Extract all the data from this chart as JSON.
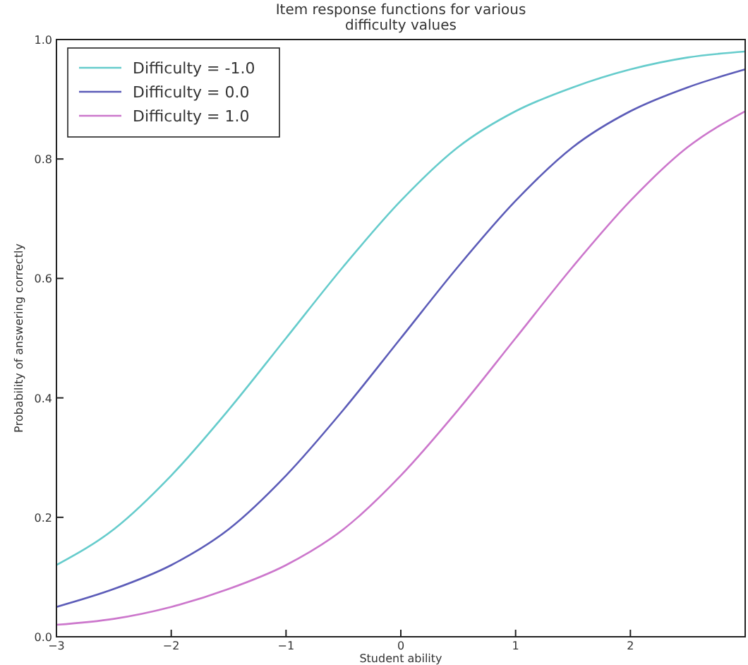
{
  "chart_data": {
    "type": "line",
    "title": "Item response functions for various\ndifficulty values",
    "xlabel": "Student ability",
    "ylabel": "Probability of answering correctly",
    "x": [
      -3,
      -2.5,
      -2,
      -1.5,
      -1,
      -0.5,
      0,
      0.5,
      1,
      1.5,
      2,
      2.5,
      3
    ],
    "series": [
      {
        "name": "Difficulty = -1.0",
        "color": "#66cccc",
        "values": [
          0.12,
          0.18,
          0.27,
          0.38,
          0.5,
          0.62,
          0.73,
          0.82,
          0.88,
          0.92,
          0.95,
          0.97,
          0.98
        ]
      },
      {
        "name": "Difficulty = 0.0",
        "color": "#5c5cb8",
        "values": [
          0.05,
          0.08,
          0.12,
          0.18,
          0.27,
          0.38,
          0.5,
          0.62,
          0.73,
          0.82,
          0.88,
          0.92,
          0.95
        ]
      },
      {
        "name": "Difficulty = 1.0",
        "color": "#cc77cc",
        "values": [
          0.02,
          0.03,
          0.05,
          0.08,
          0.12,
          0.18,
          0.27,
          0.38,
          0.5,
          0.62,
          0.73,
          0.82,
          0.88
        ]
      }
    ],
    "xlim": [
      -3,
      3
    ],
    "ylim": [
      0,
      1
    ],
    "xticks": [
      {
        "value": -3,
        "label": "−3"
      },
      {
        "value": -2,
        "label": "−2"
      },
      {
        "value": -1,
        "label": "−1"
      },
      0,
      1,
      2,
      {
        "value": 3,
        "label": null
      }
    ],
    "yticks": [
      {
        "value": 0,
        "label": "0.0"
      },
      {
        "value": 0.2,
        "label": "0.2"
      },
      {
        "value": 0.4,
        "label": "0.4"
      },
      {
        "value": 0.6,
        "label": "0.6"
      },
      {
        "value": 0.8,
        "label": "0.8"
      },
      {
        "value": 1,
        "label": "1.0"
      }
    ],
    "grid": false,
    "legend": "top left",
    "marker": "none",
    "line_style": "solid"
  }
}
